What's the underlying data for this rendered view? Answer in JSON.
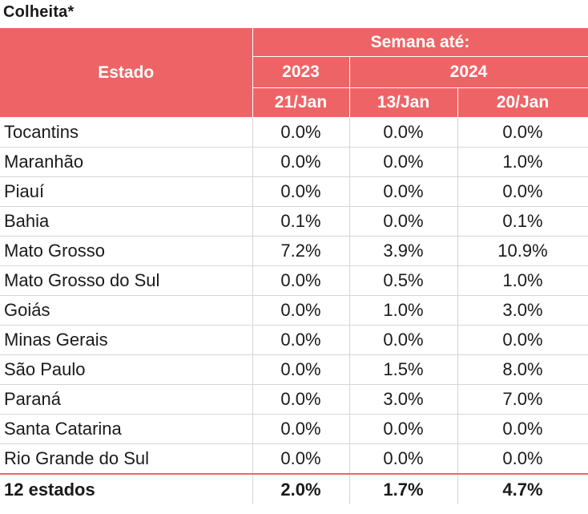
{
  "title": "Colheita*",
  "header": {
    "state_label": "Estado",
    "group_label": "Semana até:",
    "year_1": "2023",
    "year_2": "2024",
    "week_1": "21/Jan",
    "week_2": "13/Jan",
    "week_3": "20/Jan"
  },
  "rows": [
    {
      "state": "Tocantins",
      "v1": "0.0%",
      "v2": "0.0%",
      "v3": "0.0%"
    },
    {
      "state": "Maranhão",
      "v1": "0.0%",
      "v2": "0.0%",
      "v3": "1.0%"
    },
    {
      "state": "Piauí",
      "v1": "0.0%",
      "v2": "0.0%",
      "v3": "0.0%"
    },
    {
      "state": "Bahia",
      "v1": "0.1%",
      "v2": "0.0%",
      "v3": "0.1%"
    },
    {
      "state": "Mato Grosso",
      "v1": "7.2%",
      "v2": "3.9%",
      "v3": "10.9%"
    },
    {
      "state": "Mato Grosso do Sul",
      "v1": "0.0%",
      "v2": "0.5%",
      "v3": "1.0%"
    },
    {
      "state": "Goiás",
      "v1": "0.0%",
      "v2": "1.0%",
      "v3": "3.0%"
    },
    {
      "state": "Minas Gerais",
      "v1": "0.0%",
      "v2": "0.0%",
      "v3": "0.0%"
    },
    {
      "state": "São Paulo",
      "v1": "0.0%",
      "v2": "1.5%",
      "v3": "8.0%"
    },
    {
      "state": "Paraná",
      "v1": "0.0%",
      "v2": "3.0%",
      "v3": "7.0%"
    },
    {
      "state": "Santa Catarina",
      "v1": "0.0%",
      "v2": "0.0%",
      "v3": "0.0%"
    },
    {
      "state": "Rio Grande do Sul",
      "v1": "0.0%",
      "v2": "0.0%",
      "v3": "0.0%"
    }
  ],
  "total": {
    "state": "12 estados",
    "v1": "2.0%",
    "v2": "1.7%",
    "v3": "4.7%"
  },
  "colors": {
    "header_bg": "#ee6466",
    "header_text": "#ffffff",
    "grid": "#d6d6d6"
  },
  "chart_data": {
    "type": "table",
    "title": "Colheita*",
    "columns": [
      "Estado",
      "2023 21/Jan",
      "2024 13/Jan",
      "2024 20/Jan"
    ],
    "rows": [
      [
        "Tocantins",
        "0.0%",
        "0.0%",
        "0.0%"
      ],
      [
        "Maranhão",
        "0.0%",
        "0.0%",
        "1.0%"
      ],
      [
        "Piauí",
        "0.0%",
        "0.0%",
        "0.0%"
      ],
      [
        "Bahia",
        "0.1%",
        "0.0%",
        "0.1%"
      ],
      [
        "Mato Grosso",
        "7.2%",
        "3.9%",
        "10.9%"
      ],
      [
        "Mato Grosso do Sul",
        "0.0%",
        "0.5%",
        "1.0%"
      ],
      [
        "Goiás",
        "0.0%",
        "1.0%",
        "3.0%"
      ],
      [
        "Minas Gerais",
        "0.0%",
        "0.0%",
        "0.0%"
      ],
      [
        "São Paulo",
        "0.0%",
        "1.5%",
        "8.0%"
      ],
      [
        "Paraná",
        "0.0%",
        "3.0%",
        "7.0%"
      ],
      [
        "Santa Catarina",
        "0.0%",
        "0.0%",
        "0.0%"
      ],
      [
        "Rio Grande do Sul",
        "0.0%",
        "0.0%",
        "0.0%"
      ],
      [
        "12 estados",
        "2.0%",
        "1.7%",
        "4.7%"
      ]
    ]
  }
}
